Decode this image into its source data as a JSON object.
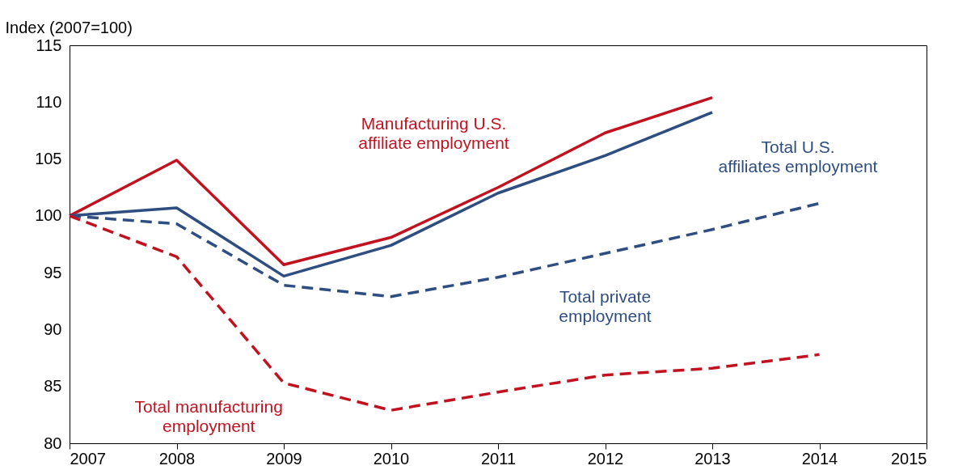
{
  "chart_data": {
    "type": "line",
    "ylabel": "Index (2007=100)",
    "x": [
      2007,
      2008,
      2009,
      2010,
      2011,
      2012,
      2013,
      2014
    ],
    "xlim": [
      2007,
      2015
    ],
    "xticks": [
      2007,
      2008,
      2009,
      2010,
      2011,
      2012,
      2013,
      2014,
      2015
    ],
    "ylim": [
      80,
      115
    ],
    "yticks": [
      80,
      85,
      90,
      95,
      100,
      105,
      110,
      115
    ],
    "grid": false,
    "legend": false,
    "marker": "none",
    "series": [
      {
        "name": "Manufacturing U.S. affiliate employment",
        "color": "#c1121f",
        "line_style": "solid",
        "values": [
          100,
          104.9,
          95.7,
          98.1,
          102.5,
          107.3,
          110.4,
          null
        ]
      },
      {
        "name": "Total U.S. affiliates employment",
        "color": "#2e4d80",
        "line_style": "solid",
        "values": [
          100,
          100.7,
          94.7,
          97.4,
          102,
          105.3,
          109.1,
          null
        ]
      },
      {
        "name": "Total private employment",
        "color": "#2e4d80",
        "line_style": "dashed",
        "values": [
          100,
          99.3,
          93.9,
          92.9,
          94.6,
          96.7,
          98.8,
          101.1
        ]
      },
      {
        "name": "Total manufacturing employment",
        "color": "#c1121f",
        "line_style": "dashed",
        "values": [
          100,
          96.4,
          85.3,
          82.9,
          84.5,
          86,
          86.6,
          87.8
        ]
      }
    ]
  }
}
